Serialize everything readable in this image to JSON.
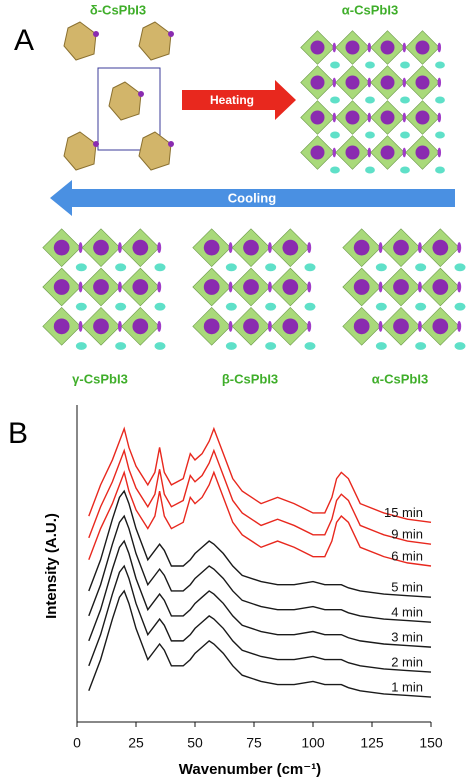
{
  "panel_a": {
    "letter": "A",
    "top_left_label": "δ-CsPbI3",
    "top_right_label": "α-CsPbI3",
    "heating": "Heating",
    "cooling": "Cooling",
    "bottom_labels": [
      "γ-CsPbI3",
      "β-CsPbI3",
      "α-CsPbI3"
    ]
  },
  "chart_data": {
    "type": "line",
    "letter": "B",
    "x_label": "Wavenumber (cm⁻¹)",
    "y_label": "Intensity (A.U.)",
    "xlim": [
      0,
      150
    ],
    "xticks": [
      0,
      25,
      50,
      75,
      100,
      125,
      150
    ],
    "ylim": [
      0,
      100
    ],
    "x": [
      5,
      10,
      15,
      18,
      20,
      22,
      25,
      30,
      33,
      35,
      37,
      40,
      45,
      48,
      50,
      53,
      56,
      58,
      62,
      66,
      70,
      78,
      85,
      92,
      100,
      105,
      108,
      110,
      112,
      115,
      120,
      130,
      140,
      150
    ],
    "series": [
      {
        "name": "1 min",
        "color": "#1a1a1a",
        "values": [
          10,
          20,
          33,
          40,
          42,
          38,
          30,
          20,
          23,
          25,
          23,
          18,
          18,
          20,
          22,
          24,
          26,
          25,
          22,
          18,
          15,
          13,
          12,
          12,
          13,
          12,
          12,
          12,
          12,
          11,
          10,
          9,
          8.5,
          8
        ]
      },
      {
        "name": "2 min",
        "color": "#1a1a1a",
        "values": [
          18,
          28,
          41,
          48,
          50,
          46,
          38,
          28,
          31,
          33,
          31,
          26,
          26,
          28,
          30,
          32,
          34,
          33,
          30,
          26,
          23,
          21,
          20,
          20,
          21,
          20,
          20,
          20,
          20,
          19,
          18,
          17,
          16.5,
          16
        ]
      },
      {
        "name": "3 min",
        "color": "#1a1a1a",
        "values": [
          26,
          36,
          49,
          56,
          58,
          54,
          46,
          36,
          39,
          41,
          39,
          34,
          34,
          36,
          38,
          40,
          42,
          41,
          38,
          34,
          31,
          29,
          28,
          28,
          29,
          28,
          28,
          28,
          28,
          27,
          26,
          25,
          24.5,
          24
        ]
      },
      {
        "name": "4 min",
        "color": "#1a1a1a",
        "values": [
          34,
          44,
          57,
          64,
          66,
          62,
          54,
          44,
          47,
          49,
          47,
          42,
          42,
          44,
          46,
          48,
          50,
          49,
          46,
          42,
          39,
          37,
          36,
          36,
          37,
          36,
          36,
          36,
          36,
          35,
          34,
          33,
          32.5,
          32
        ]
      },
      {
        "name": "5 min",
        "color": "#1a1a1a",
        "values": [
          42,
          52,
          65,
          72,
          74,
          70,
          62,
          52,
          55,
          57,
          55,
          50,
          50,
          52,
          54,
          56,
          58,
          57,
          54,
          50,
          47,
          45,
          44,
          44,
          45,
          44,
          44,
          44,
          44,
          43,
          42,
          41,
          40.5,
          40
        ]
      },
      {
        "name": "6 min",
        "color": "#e8281e",
        "values": [
          52,
          62,
          70,
          76,
          80,
          74,
          68,
          62,
          66,
          74,
          66,
          62,
          64,
          72,
          70,
          72,
          76,
          80,
          72,
          64,
          60,
          56,
          58,
          56,
          53,
          53,
          58,
          64,
          66,
          64,
          56,
          53,
          51,
          50
        ]
      },
      {
        "name": "9 min",
        "color": "#e8281e",
        "values": [
          59,
          69,
          77,
          83,
          87,
          81,
          75,
          69,
          73,
          81,
          73,
          69,
          71,
          79,
          77,
          79,
          83,
          87,
          79,
          71,
          67,
          63,
          65,
          63,
          60,
          60,
          65,
          71,
          73,
          71,
          63,
          60,
          58,
          57
        ]
      },
      {
        "name": "15 min",
        "color": "#e8281e",
        "values": [
          66,
          76,
          84,
          90,
          94,
          88,
          82,
          76,
          80,
          88,
          80,
          76,
          78,
          86,
          84,
          86,
          90,
          94,
          86,
          78,
          74,
          70,
          72,
          70,
          67,
          67,
          72,
          78,
          80,
          78,
          70,
          67,
          65,
          64
        ]
      }
    ]
  }
}
